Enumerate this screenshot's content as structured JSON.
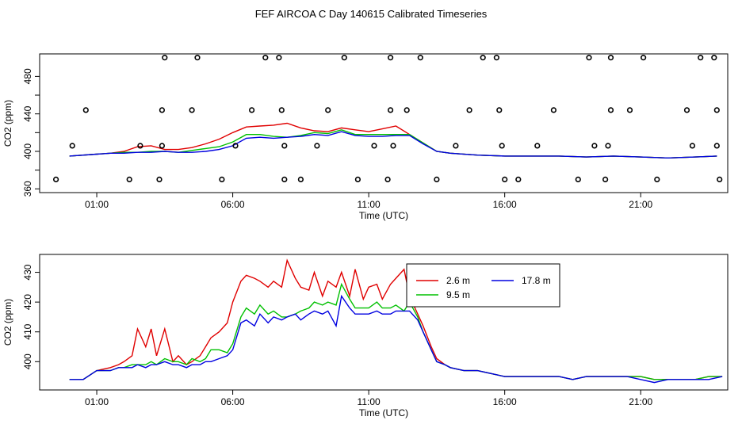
{
  "figure_title": "FEF AIRCOA C  Day 140615  Calibrated Timeseries",
  "colors": {
    "red": "#e00000",
    "green": "#00c000",
    "blue": "#0000e0",
    "axis": "#000000"
  },
  "chart_data": [
    {
      "type": "line+scatter",
      "xlabel": "Time (UTC)",
      "ylabel": "CO2 (ppm)",
      "x_ticks": [
        1,
        6,
        11,
        16,
        21
      ],
      "x_tick_labels": [
        "01:00",
        "06:00",
        "11:00",
        "16:00",
        "21:00"
      ],
      "y_ticks": [
        360,
        380,
        400,
        420,
        440,
        460,
        480
      ],
      "y_tick_labels": [
        "360",
        "",
        "400",
        "",
        "440",
        "",
        "480"
      ],
      "xlim": [
        -1.1,
        24.2
      ],
      "ylim": [
        356,
        504
      ],
      "series": [
        {
          "name": "2.6 m",
          "color": "#e00000",
          "x": [
            0,
            1,
            1.5,
            2,
            2.5,
            3,
            3.5,
            4,
            4.5,
            5,
            5.5,
            6,
            6.5,
            7,
            7.5,
            8,
            8.5,
            9,
            9.5,
            10,
            10.5,
            11,
            11.5,
            12,
            12.5,
            13,
            13.5,
            14,
            15,
            16,
            17,
            18,
            19,
            20,
            21,
            22,
            23,
            23.8
          ],
          "y": [
            395,
            397,
            398,
            400,
            405,
            406,
            402,
            402,
            404,
            408,
            413,
            420,
            426,
            427,
            428,
            430,
            425,
            422,
            421,
            425,
            423,
            421,
            424,
            427,
            418,
            409,
            400,
            398,
            396,
            395,
            395,
            395,
            394,
            395,
            394,
            393,
            394,
            395
          ]
        },
        {
          "name": "9.5 m",
          "color": "#00c000",
          "x": [
            0,
            1,
            1.5,
            2,
            2.5,
            3,
            3.5,
            4,
            4.5,
            5,
            5.5,
            6,
            6.5,
            7,
            7.5,
            8,
            8.5,
            9,
            9.5,
            10,
            10.5,
            11,
            11.5,
            12,
            12.5,
            13,
            13.5,
            14,
            15,
            16,
            17,
            18,
            19,
            20,
            21,
            22,
            23,
            23.8
          ],
          "y": [
            395,
            397,
            398,
            399,
            399,
            400,
            400,
            399,
            401,
            403,
            405,
            410,
            418,
            418,
            416,
            415,
            417,
            420,
            419,
            423,
            418,
            418,
            418,
            418,
            418,
            409,
            400,
            398,
            396,
            395,
            395,
            395,
            394,
            395,
            394,
            393,
            394,
            395
          ]
        },
        {
          "name": "17.8 m",
          "color": "#0000e0",
          "x": [
            0,
            1,
            1.5,
            2,
            2.5,
            3,
            3.5,
            4,
            4.5,
            5,
            5.5,
            6,
            6.5,
            7,
            7.5,
            8,
            8.5,
            9,
            9.5,
            10,
            10.5,
            11,
            11.5,
            12,
            12.5,
            13,
            13.5,
            14,
            15,
            16,
            17,
            18,
            19,
            20,
            21,
            22,
            23,
            23.8
          ],
          "y": [
            395,
            397,
            398,
            398,
            399,
            399,
            400,
            399,
            399,
            400,
            402,
            406,
            414,
            415,
            414,
            415,
            416,
            418,
            417,
            421,
            417,
            416,
            416,
            417,
            417,
            408,
            400,
            398,
            396,
            395,
            395,
            395,
            394,
            395,
            394,
            393,
            394,
            395
          ]
        }
      ],
      "markers": {
        "symbol": "open-circle",
        "points": [
          [
            -0.5,
            370
          ],
          [
            0.1,
            406
          ],
          [
            0.6,
            444
          ],
          [
            2.2,
            370
          ],
          [
            2.6,
            406
          ],
          [
            3.3,
            370
          ],
          [
            3.4,
            444
          ],
          [
            3.4,
            406
          ],
          [
            3.5,
            500
          ],
          [
            4.5,
            444
          ],
          [
            4.7,
            500
          ],
          [
            5.6,
            370
          ],
          [
            6.1,
            406
          ],
          [
            6.7,
            444
          ],
          [
            7.2,
            500
          ],
          [
            7.7,
            500
          ],
          [
            7.8,
            444
          ],
          [
            7.9,
            406
          ],
          [
            7.9,
            370
          ],
          [
            8.5,
            370
          ],
          [
            9.1,
            406
          ],
          [
            9.5,
            444
          ],
          [
            10.1,
            500
          ],
          [
            10.6,
            370
          ],
          [
            11.2,
            406
          ],
          [
            11.7,
            370
          ],
          [
            11.8,
            444
          ],
          [
            11.8,
            500
          ],
          [
            11.9,
            406
          ],
          [
            12.4,
            444
          ],
          [
            12.9,
            500
          ],
          [
            13.5,
            370
          ],
          [
            14.2,
            406
          ],
          [
            14.7,
            444
          ],
          [
            15.2,
            500
          ],
          [
            15.7,
            500
          ],
          [
            15.8,
            444
          ],
          [
            15.9,
            406
          ],
          [
            16.0,
            370
          ],
          [
            16.5,
            370
          ],
          [
            17.2,
            406
          ],
          [
            17.8,
            444
          ],
          [
            18.7,
            370
          ],
          [
            19.1,
            500
          ],
          [
            19.3,
            406
          ],
          [
            19.7,
            370
          ],
          [
            19.8,
            406
          ],
          [
            19.9,
            444
          ],
          [
            19.9,
            500
          ],
          [
            20.6,
            444
          ],
          [
            21.1,
            500
          ],
          [
            21.6,
            370
          ],
          [
            22.7,
            444
          ],
          [
            22.9,
            406
          ],
          [
            23.2,
            500
          ],
          [
            23.7,
            500
          ],
          [
            23.8,
            444
          ],
          [
            23.8,
            406
          ],
          [
            23.9,
            370
          ]
        ]
      }
    },
    {
      "type": "line",
      "xlabel": "Time (UTC)",
      "ylabel": "CO2 (ppm)",
      "x_ticks": [
        1,
        6,
        11,
        16,
        21
      ],
      "x_tick_labels": [
        "01:00",
        "06:00",
        "11:00",
        "16:00",
        "21:00"
      ],
      "y_ticks": [
        400,
        410,
        420,
        430
      ],
      "y_tick_labels": [
        "400",
        "410",
        "420",
        "430"
      ],
      "xlim": [
        -1.1,
        24.2
      ],
      "ylim": [
        390.5,
        436
      ],
      "legend": {
        "position": "top-right",
        "entries": [
          "2.6 m",
          "17.8 m",
          "9.5 m"
        ]
      },
      "series": [
        {
          "name": "2.6 m",
          "color": "#e00000",
          "x": [
            0,
            0.5,
            1,
            1.5,
            1.8,
            2,
            2.3,
            2.5,
            2.8,
            3.0,
            3.2,
            3.5,
            3.8,
            4.0,
            4.3,
            4.5,
            4.8,
            5.0,
            5.2,
            5.5,
            5.8,
            6.0,
            6.3,
            6.5,
            6.8,
            7.0,
            7.3,
            7.5,
            7.8,
            8.0,
            8.3,
            8.5,
            8.8,
            9.0,
            9.3,
            9.5,
            9.8,
            10.0,
            10.3,
            10.5,
            10.8,
            11.0,
            11.3,
            11.5,
            11.8,
            12.0,
            12.3,
            12.5,
            12.8,
            13.0,
            13.3,
            13.5,
            13.8,
            14.0,
            14.5,
            15.0,
            15.5,
            16.0,
            16.5,
            17,
            17.5,
            18,
            18.5,
            19,
            19.5,
            20,
            20.5,
            21,
            21.5,
            22,
            22.5,
            23,
            23.5,
            24
          ],
          "y": [
            394,
            394,
            397,
            398,
            399,
            400,
            402,
            411,
            405,
            411,
            402,
            411,
            400,
            402,
            399,
            400,
            402,
            405,
            408,
            410,
            413,
            420,
            427,
            429,
            428,
            427,
            425,
            427,
            425,
            434,
            428,
            425,
            424,
            430,
            422,
            427,
            425,
            430,
            422,
            431,
            421,
            425,
            426,
            421,
            426,
            428,
            431,
            422,
            416,
            412,
            405,
            401,
            399,
            398,
            397,
            397,
            396,
            395,
            395,
            395,
            395,
            395,
            394,
            395,
            395,
            395,
            395,
            395,
            394,
            394,
            394,
            394,
            395,
            395
          ]
        },
        {
          "name": "9.5 m",
          "color": "#00c000",
          "x": [
            0,
            0.5,
            1,
            1.5,
            1.8,
            2,
            2.3,
            2.5,
            2.8,
            3.0,
            3.2,
            3.5,
            3.8,
            4.0,
            4.3,
            4.5,
            4.8,
            5.0,
            5.2,
            5.5,
            5.8,
            6.0,
            6.3,
            6.5,
            6.8,
            7.0,
            7.3,
            7.5,
            7.8,
            8.0,
            8.3,
            8.5,
            8.8,
            9.0,
            9.3,
            9.5,
            9.8,
            10.0,
            10.3,
            10.5,
            10.8,
            11.0,
            11.3,
            11.5,
            11.8,
            12.0,
            12.3,
            12.5,
            12.8,
            13.0,
            13.3,
            13.5,
            13.8,
            14.0,
            14.5,
            15.0,
            15.5,
            16.0,
            16.5,
            17,
            17.5,
            18,
            18.5,
            19,
            19.5,
            20,
            20.5,
            21,
            21.5,
            22,
            22.5,
            23,
            23.5,
            24
          ],
          "y": [
            394,
            394,
            397,
            397,
            398,
            398,
            399,
            399,
            399,
            400,
            399,
            401,
            400,
            400,
            399,
            401,
            400,
            401,
            404,
            404,
            403,
            406,
            415,
            418,
            416,
            419,
            416,
            417,
            415,
            415,
            416,
            417,
            418,
            420,
            419,
            420,
            419,
            426,
            421,
            418,
            418,
            418,
            420,
            418,
            418,
            419,
            417,
            420,
            415,
            410,
            404,
            400,
            399,
            398,
            397,
            397,
            396,
            395,
            395,
            395,
            395,
            395,
            394,
            395,
            395,
            395,
            395,
            395,
            394,
            394,
            394,
            394,
            395,
            395
          ]
        },
        {
          "name": "17.8 m",
          "color": "#0000e0",
          "x": [
            0,
            0.5,
            1,
            1.5,
            1.8,
            2,
            2.3,
            2.5,
            2.8,
            3.0,
            3.2,
            3.5,
            3.8,
            4.0,
            4.3,
            4.5,
            4.8,
            5.0,
            5.2,
            5.5,
            5.8,
            6.0,
            6.3,
            6.5,
            6.8,
            7.0,
            7.3,
            7.5,
            7.8,
            8.0,
            8.3,
            8.5,
            8.8,
            9.0,
            9.3,
            9.5,
            9.8,
            10.0,
            10.3,
            10.5,
            10.8,
            11.0,
            11.3,
            11.5,
            11.8,
            12.0,
            12.3,
            12.5,
            12.8,
            13.0,
            13.3,
            13.5,
            13.8,
            14.0,
            14.5,
            15.0,
            15.5,
            16.0,
            16.5,
            17,
            17.5,
            18,
            18.5,
            19,
            19.5,
            20,
            20.5,
            21,
            21.5,
            22,
            22.5,
            23,
            23.5,
            24
          ],
          "y": [
            394,
            394,
            397,
            397,
            398,
            398,
            398,
            399,
            398,
            399,
            399,
            400,
            399,
            399,
            398,
            399,
            399,
            400,
            400,
            401,
            402,
            404,
            413,
            414,
            412,
            416,
            413,
            415,
            414,
            415,
            416,
            414,
            416,
            417,
            416,
            417,
            412,
            422,
            418,
            416,
            416,
            416,
            417,
            416,
            416,
            417,
            417,
            417,
            414,
            410,
            404,
            400,
            399,
            398,
            397,
            397,
            396,
            395,
            395,
            395,
            395,
            395,
            394,
            395,
            395,
            395,
            395,
            394,
            393,
            394,
            394,
            394,
            394,
            395
          ]
        }
      ]
    }
  ]
}
